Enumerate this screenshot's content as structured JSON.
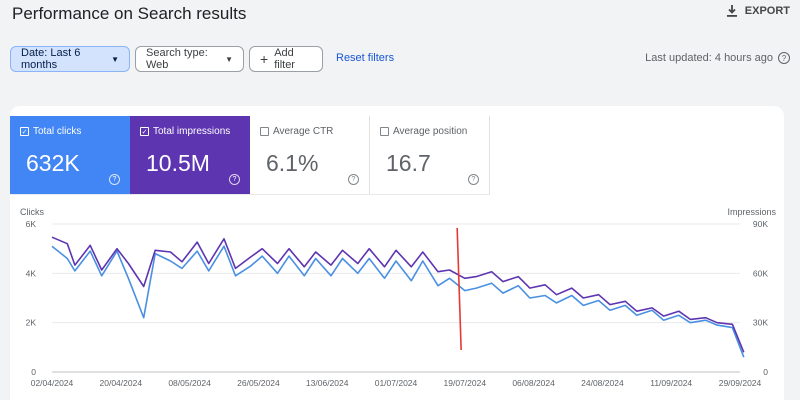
{
  "header": {
    "title": "Performance on Search results",
    "export_label": "EXPORT"
  },
  "filters": {
    "date_chip": "Date: Last 6 months",
    "search_type_chip": "Search type: Web",
    "add_filter": "Add filter",
    "reset": "Reset filters",
    "last_updated": "Last updated: 4 hours ago"
  },
  "metrics": [
    {
      "label": "Total clicks",
      "value": "632K",
      "selected": true,
      "color": "#4285f4"
    },
    {
      "label": "Total impressions",
      "value": "10.5M",
      "selected": true,
      "color": "#5e35b1"
    },
    {
      "label": "Average CTR",
      "value": "6.1%",
      "selected": false
    },
    {
      "label": "Average position",
      "value": "16.7",
      "selected": false
    }
  ],
  "chart_data": {
    "type": "line",
    "y_left_label": "Clicks",
    "y_right_label": "Impressions",
    "y_left_ticks": [
      "0",
      "2K",
      "4K",
      "6K"
    ],
    "y_right_ticks": [
      "0",
      "30K",
      "60K",
      "90K"
    ],
    "y_left_range": [
      0,
      6000
    ],
    "y_right_range": [
      0,
      90000
    ],
    "x_ticks": [
      "02/04/2024",
      "20/04/2024",
      "08/05/2024",
      "26/05/2024",
      "13/06/2024",
      "01/07/2024",
      "19/07/2024",
      "06/08/2024",
      "24/08/2024",
      "11/09/2024",
      "29/09/2024"
    ],
    "x_tick_dates": [
      "2024-04-02",
      "2024-04-20",
      "2024-05-08",
      "2024-05-26",
      "2024-06-13",
      "2024-07-01",
      "2024-07-19",
      "2024-08-06",
      "2024-08-24",
      "2024-09-11",
      "2024-09-29"
    ],
    "series": [
      {
        "name": "Clicks",
        "axis": "left",
        "color": "#4a90e2",
        "points": [
          [
            "2024-04-02",
            5100
          ],
          [
            "2024-04-06",
            4600
          ],
          [
            "2024-04-08",
            4100
          ],
          [
            "2024-04-12",
            4900
          ],
          [
            "2024-04-15",
            3900
          ],
          [
            "2024-04-19",
            4900
          ],
          [
            "2024-04-22",
            3800
          ],
          [
            "2024-04-26",
            2200
          ],
          [
            "2024-04-29",
            4800
          ],
          [
            "2024-05-03",
            4500
          ],
          [
            "2024-05-06",
            4200
          ],
          [
            "2024-05-10",
            4900
          ],
          [
            "2024-05-13",
            4100
          ],
          [
            "2024-05-17",
            5100
          ],
          [
            "2024-05-20",
            3900
          ],
          [
            "2024-05-24",
            4300
          ],
          [
            "2024-05-27",
            4700
          ],
          [
            "2024-05-31",
            4000
          ],
          [
            "2024-06-03",
            4700
          ],
          [
            "2024-06-07",
            3900
          ],
          [
            "2024-06-10",
            4600
          ],
          [
            "2024-06-14",
            3900
          ],
          [
            "2024-06-17",
            4600
          ],
          [
            "2024-06-21",
            4000
          ],
          [
            "2024-06-24",
            4600
          ],
          [
            "2024-06-28",
            3800
          ],
          [
            "2024-07-01",
            4500
          ],
          [
            "2024-07-05",
            3700
          ],
          [
            "2024-07-08",
            4500
          ],
          [
            "2024-07-12",
            3500
          ],
          [
            "2024-07-15",
            3800
          ],
          [
            "2024-07-19",
            3300
          ],
          [
            "2024-07-22",
            3400
          ],
          [
            "2024-07-26",
            3600
          ],
          [
            "2024-07-29",
            3200
          ],
          [
            "2024-08-02",
            3500
          ],
          [
            "2024-08-05",
            3000
          ],
          [
            "2024-08-09",
            3100
          ],
          [
            "2024-08-12",
            2800
          ],
          [
            "2024-08-16",
            3100
          ],
          [
            "2024-08-19",
            2700
          ],
          [
            "2024-08-23",
            2900
          ],
          [
            "2024-08-26",
            2500
          ],
          [
            "2024-08-30",
            2700
          ],
          [
            "2024-09-02",
            2300
          ],
          [
            "2024-09-06",
            2500
          ],
          [
            "2024-09-09",
            2100
          ],
          [
            "2024-09-13",
            2300
          ],
          [
            "2024-09-16",
            2000
          ],
          [
            "2024-09-20",
            2100
          ],
          [
            "2024-09-23",
            1900
          ],
          [
            "2024-09-27",
            1800
          ],
          [
            "2024-09-30",
            600
          ]
        ]
      },
      {
        "name": "Impressions",
        "axis": "right",
        "color": "#5e35b1",
        "points": [
          [
            "2024-04-02",
            82000
          ],
          [
            "2024-04-06",
            78000
          ],
          [
            "2024-04-08",
            65000
          ],
          [
            "2024-04-12",
            77000
          ],
          [
            "2024-04-15",
            62000
          ],
          [
            "2024-04-19",
            75000
          ],
          [
            "2024-04-22",
            66000
          ],
          [
            "2024-04-26",
            52000
          ],
          [
            "2024-04-29",
            74000
          ],
          [
            "2024-05-03",
            73000
          ],
          [
            "2024-05-06",
            67000
          ],
          [
            "2024-05-10",
            79000
          ],
          [
            "2024-05-13",
            66000
          ],
          [
            "2024-05-17",
            81000
          ],
          [
            "2024-05-20",
            63000
          ],
          [
            "2024-05-24",
            70000
          ],
          [
            "2024-05-27",
            75000
          ],
          [
            "2024-05-31",
            66000
          ],
          [
            "2024-06-03",
            75000
          ],
          [
            "2024-06-07",
            64000
          ],
          [
            "2024-06-10",
            73000
          ],
          [
            "2024-06-14",
            65000
          ],
          [
            "2024-06-17",
            74000
          ],
          [
            "2024-06-21",
            66000
          ],
          [
            "2024-06-24",
            75000
          ],
          [
            "2024-06-28",
            64000
          ],
          [
            "2024-07-01",
            74000
          ],
          [
            "2024-07-05",
            64000
          ],
          [
            "2024-07-08",
            73000
          ],
          [
            "2024-07-12",
            61000
          ],
          [
            "2024-07-15",
            62000
          ],
          [
            "2024-07-19",
            57000
          ],
          [
            "2024-07-22",
            58000
          ],
          [
            "2024-07-26",
            61000
          ],
          [
            "2024-07-29",
            55000
          ],
          [
            "2024-08-02",
            58000
          ],
          [
            "2024-08-05",
            51000
          ],
          [
            "2024-08-09",
            53000
          ],
          [
            "2024-08-12",
            47000
          ],
          [
            "2024-08-16",
            51000
          ],
          [
            "2024-08-19",
            45000
          ],
          [
            "2024-08-23",
            47000
          ],
          [
            "2024-08-26",
            41000
          ],
          [
            "2024-08-30",
            43000
          ],
          [
            "2024-09-02",
            37000
          ],
          [
            "2024-09-06",
            39000
          ],
          [
            "2024-09-09",
            34000
          ],
          [
            "2024-09-13",
            37000
          ],
          [
            "2024-09-16",
            32000
          ],
          [
            "2024-09-20",
            33000
          ],
          [
            "2024-09-23",
            30000
          ],
          [
            "2024-09-27",
            29000
          ],
          [
            "2024-09-30",
            12000
          ]
        ]
      }
    ],
    "annotation": {
      "type": "vertical-line",
      "date": "2024-07-17",
      "color": "#e53935"
    },
    "grid": true,
    "legend": "none"
  }
}
